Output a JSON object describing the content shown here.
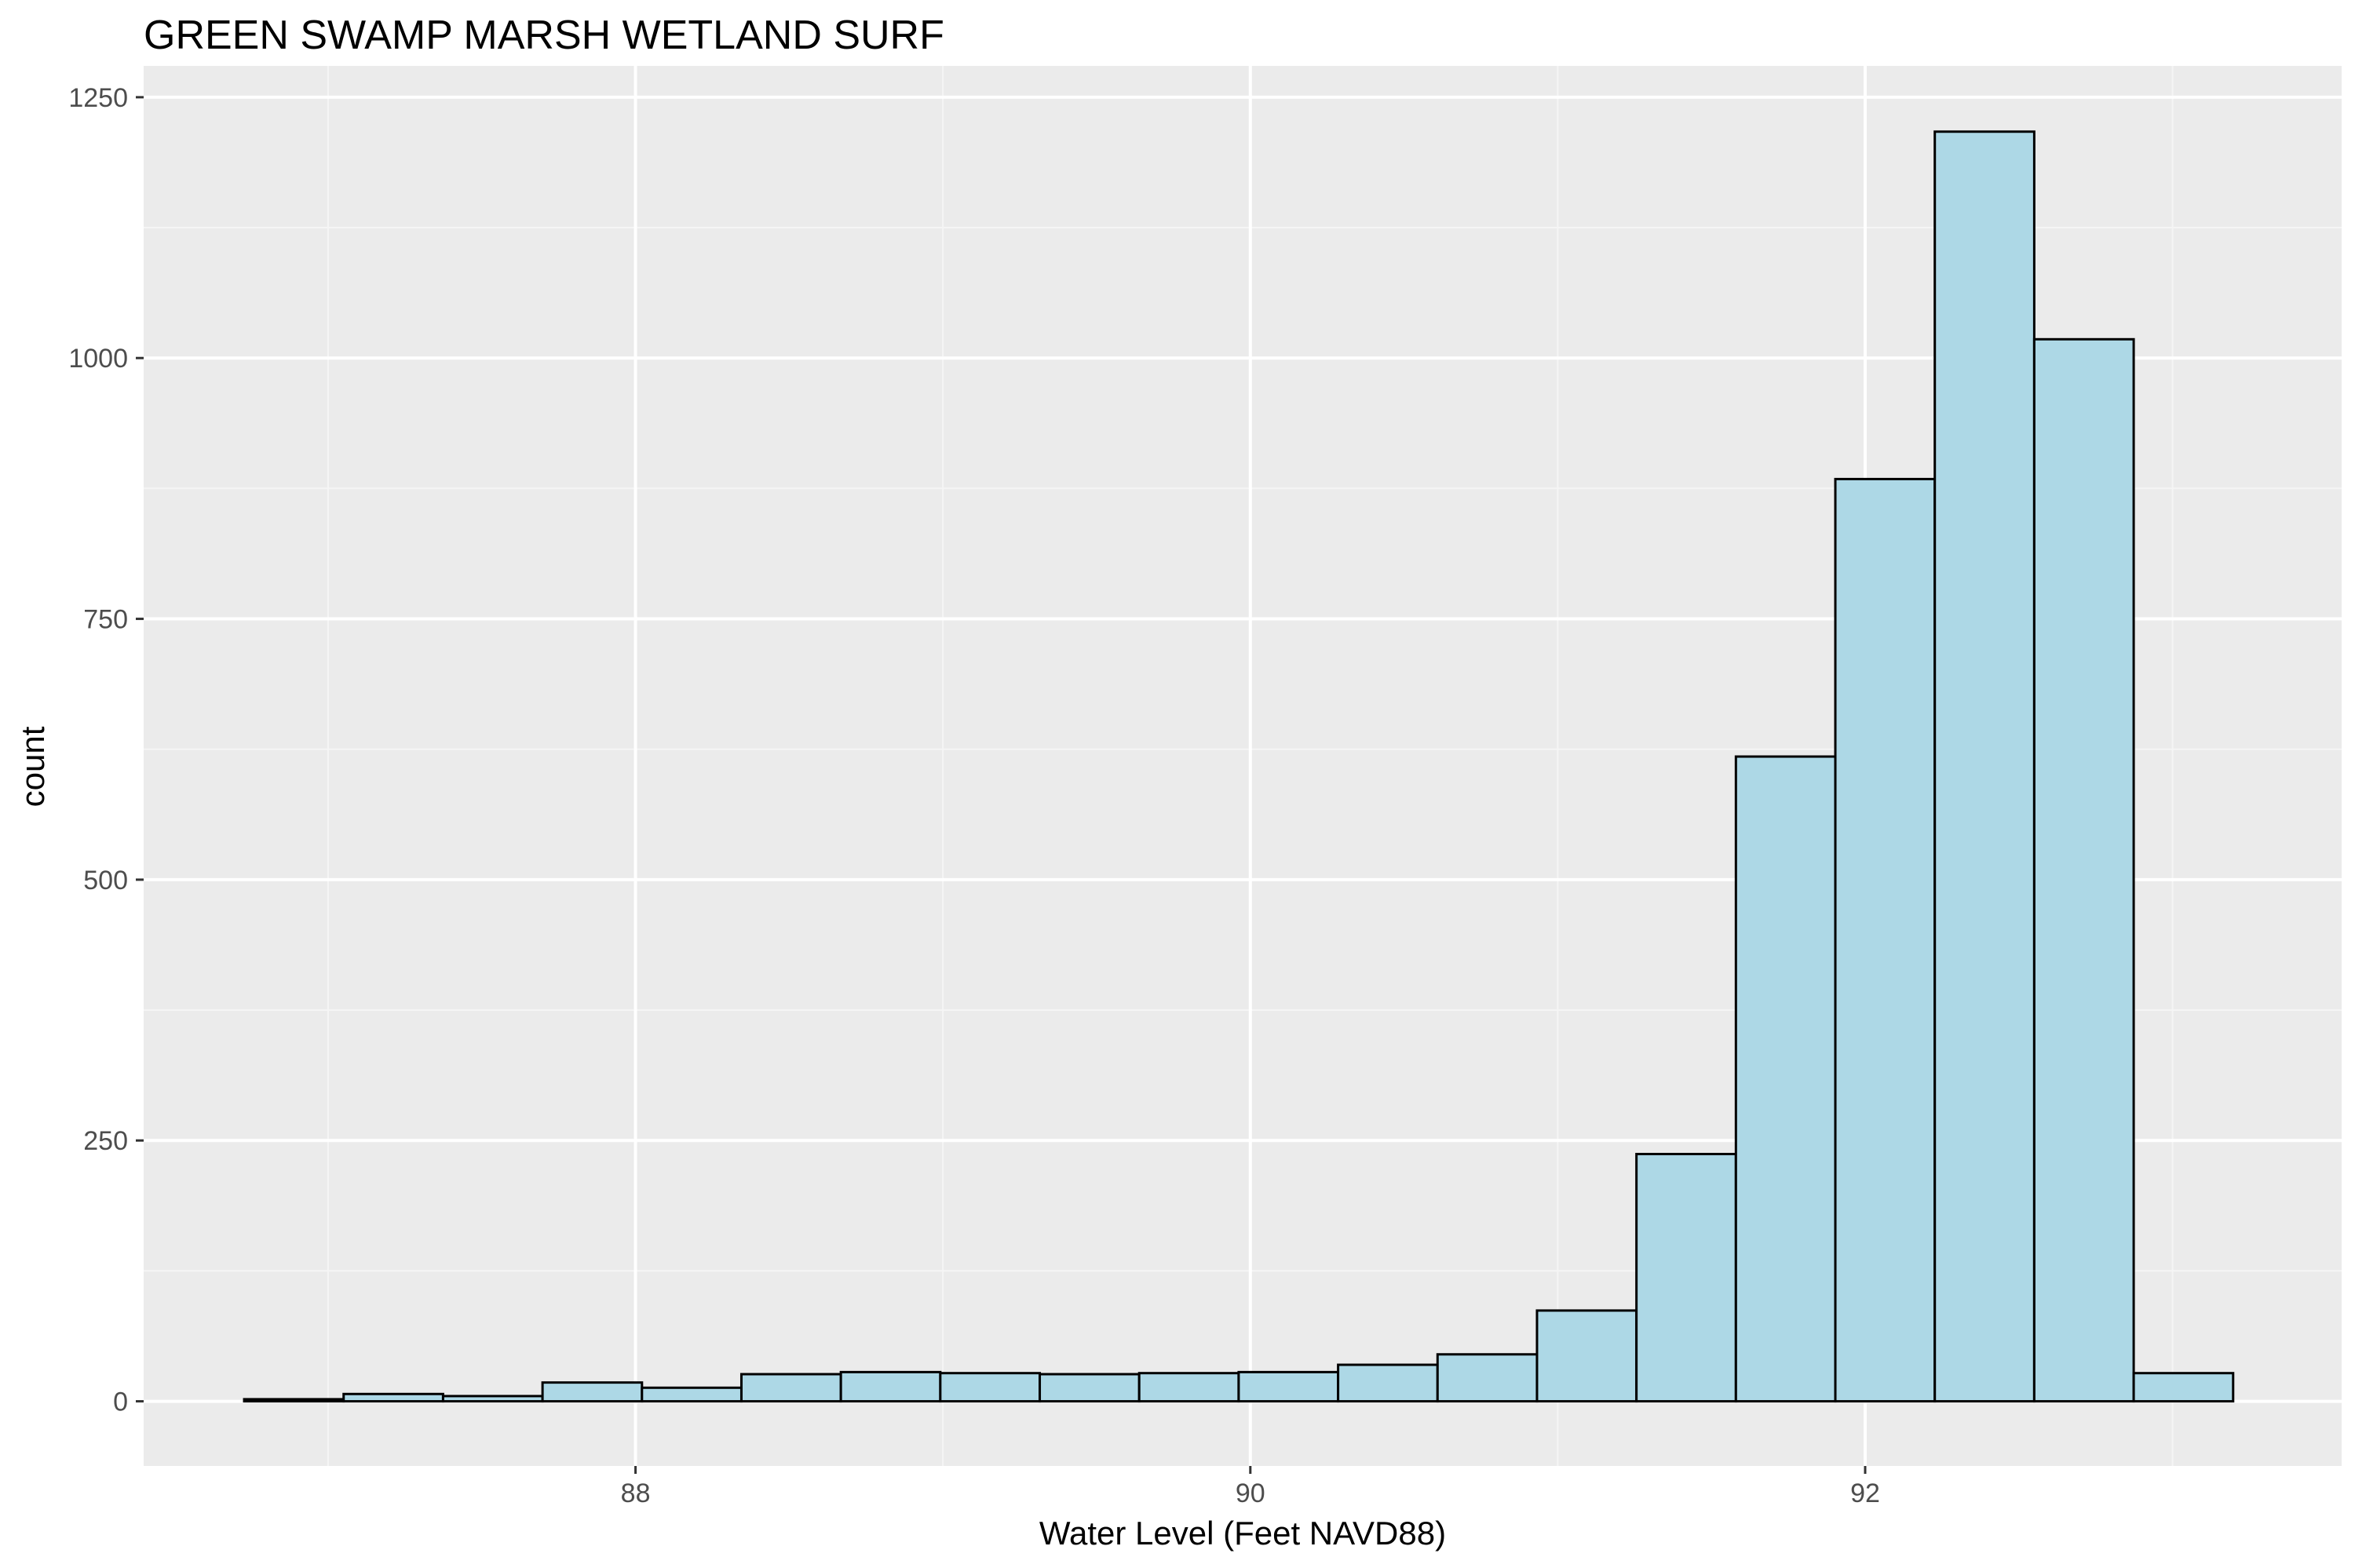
{
  "chart_data": {
    "type": "bar",
    "title": "GREEN SWAMP MARSH WETLAND SURF",
    "xlabel": "Water Level (Feet NAVD88)",
    "ylabel": "count",
    "xlim": [
      86.4,
      93.55
    ],
    "ylim": [
      -62,
      1280
    ],
    "x_ticks": [
      88,
      90,
      92
    ],
    "x_tick_labels": [
      "88",
      "90",
      "92"
    ],
    "y_ticks": [
      0,
      250,
      500,
      750,
      1000,
      1250
    ],
    "y_tick_labels": [
      "0",
      "250",
      "500",
      "750",
      "1000",
      "1250"
    ],
    "bin_width": 0.3235,
    "first_bin_left": 86.727,
    "values": [
      2,
      7,
      5,
      18,
      13,
      26,
      28,
      27,
      26,
      27,
      28,
      35,
      45,
      87,
      237,
      618,
      884,
      1217,
      1018,
      27
    ],
    "grid": true,
    "legend": "none",
    "colors": {
      "panel_background": "#ebebeb",
      "grid_major": "#ffffff",
      "grid_minor": "#f5f5f5",
      "bar_fill": "#add8e6",
      "bar_outline": "#000000"
    }
  }
}
